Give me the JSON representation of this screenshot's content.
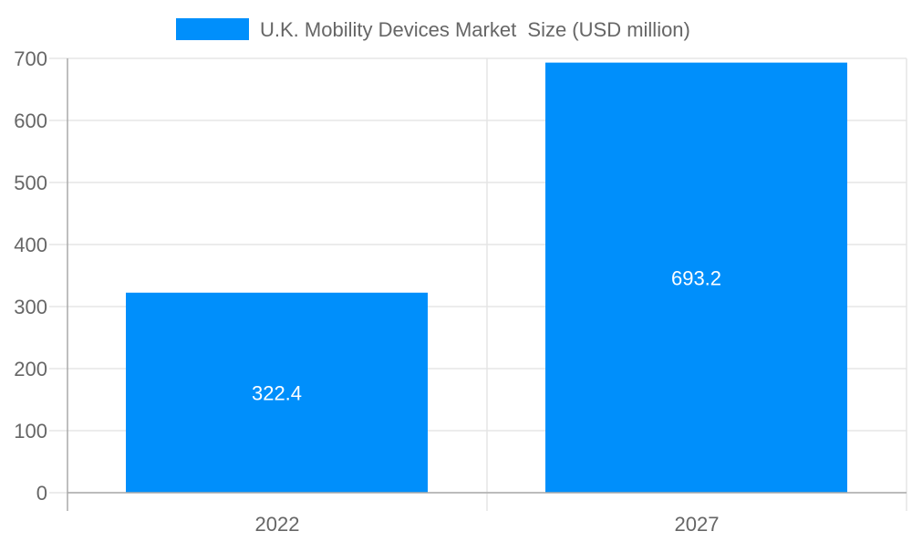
{
  "chart_data": {
    "type": "bar",
    "categories": [
      "2022",
      "2027"
    ],
    "series": [
      {
        "name": "U.K. Mobility Devices Market  Size (USD million)",
        "values": [
          322.4,
          693.2
        ],
        "color": "#008ffb"
      }
    ],
    "data_labels": [
      "322.4",
      "693.2"
    ],
    "ylim": [
      0,
      700
    ],
    "yticks": [
      "0",
      "100",
      "200",
      "300",
      "400",
      "500",
      "600",
      "700"
    ],
    "grid": true,
    "legend_position": "top"
  }
}
